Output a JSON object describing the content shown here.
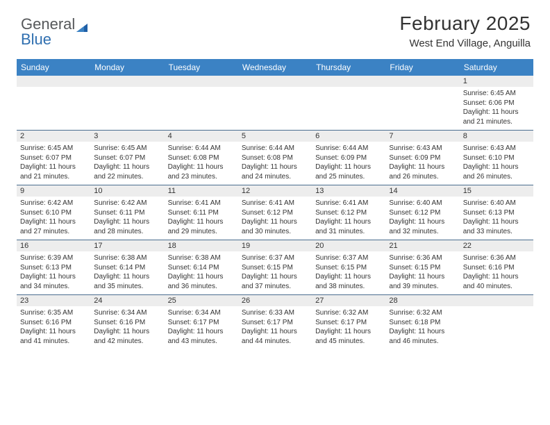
{
  "brand": {
    "part1": "General",
    "part2": "Blue"
  },
  "title": "February 2025",
  "location": "West End Village, Anguilla",
  "colors": {
    "header_bar": "#3b82c4",
    "week_border": "#4a6d8f",
    "daynum_bg": "#ededed",
    "text": "#333333",
    "logo_dark": "#56585a",
    "logo_blue": "#2f6fb0"
  },
  "daysOfWeek": [
    "Sunday",
    "Monday",
    "Tuesday",
    "Wednesday",
    "Thursday",
    "Friday",
    "Saturday"
  ],
  "weeks": [
    [
      {
        "n": "",
        "sr": "",
        "ss": "",
        "dl": ""
      },
      {
        "n": "",
        "sr": "",
        "ss": "",
        "dl": ""
      },
      {
        "n": "",
        "sr": "",
        "ss": "",
        "dl": ""
      },
      {
        "n": "",
        "sr": "",
        "ss": "",
        "dl": ""
      },
      {
        "n": "",
        "sr": "",
        "ss": "",
        "dl": ""
      },
      {
        "n": "",
        "sr": "",
        "ss": "",
        "dl": ""
      },
      {
        "n": "1",
        "sr": "Sunrise: 6:45 AM",
        "ss": "Sunset: 6:06 PM",
        "dl": "Daylight: 11 hours and 21 minutes."
      }
    ],
    [
      {
        "n": "2",
        "sr": "Sunrise: 6:45 AM",
        "ss": "Sunset: 6:07 PM",
        "dl": "Daylight: 11 hours and 21 minutes."
      },
      {
        "n": "3",
        "sr": "Sunrise: 6:45 AM",
        "ss": "Sunset: 6:07 PM",
        "dl": "Daylight: 11 hours and 22 minutes."
      },
      {
        "n": "4",
        "sr": "Sunrise: 6:44 AM",
        "ss": "Sunset: 6:08 PM",
        "dl": "Daylight: 11 hours and 23 minutes."
      },
      {
        "n": "5",
        "sr": "Sunrise: 6:44 AM",
        "ss": "Sunset: 6:08 PM",
        "dl": "Daylight: 11 hours and 24 minutes."
      },
      {
        "n": "6",
        "sr": "Sunrise: 6:44 AM",
        "ss": "Sunset: 6:09 PM",
        "dl": "Daylight: 11 hours and 25 minutes."
      },
      {
        "n": "7",
        "sr": "Sunrise: 6:43 AM",
        "ss": "Sunset: 6:09 PM",
        "dl": "Daylight: 11 hours and 26 minutes."
      },
      {
        "n": "8",
        "sr": "Sunrise: 6:43 AM",
        "ss": "Sunset: 6:10 PM",
        "dl": "Daylight: 11 hours and 26 minutes."
      }
    ],
    [
      {
        "n": "9",
        "sr": "Sunrise: 6:42 AM",
        "ss": "Sunset: 6:10 PM",
        "dl": "Daylight: 11 hours and 27 minutes."
      },
      {
        "n": "10",
        "sr": "Sunrise: 6:42 AM",
        "ss": "Sunset: 6:11 PM",
        "dl": "Daylight: 11 hours and 28 minutes."
      },
      {
        "n": "11",
        "sr": "Sunrise: 6:41 AM",
        "ss": "Sunset: 6:11 PM",
        "dl": "Daylight: 11 hours and 29 minutes."
      },
      {
        "n": "12",
        "sr": "Sunrise: 6:41 AM",
        "ss": "Sunset: 6:12 PM",
        "dl": "Daylight: 11 hours and 30 minutes."
      },
      {
        "n": "13",
        "sr": "Sunrise: 6:41 AM",
        "ss": "Sunset: 6:12 PM",
        "dl": "Daylight: 11 hours and 31 minutes."
      },
      {
        "n": "14",
        "sr": "Sunrise: 6:40 AM",
        "ss": "Sunset: 6:12 PM",
        "dl": "Daylight: 11 hours and 32 minutes."
      },
      {
        "n": "15",
        "sr": "Sunrise: 6:40 AM",
        "ss": "Sunset: 6:13 PM",
        "dl": "Daylight: 11 hours and 33 minutes."
      }
    ],
    [
      {
        "n": "16",
        "sr": "Sunrise: 6:39 AM",
        "ss": "Sunset: 6:13 PM",
        "dl": "Daylight: 11 hours and 34 minutes."
      },
      {
        "n": "17",
        "sr": "Sunrise: 6:38 AM",
        "ss": "Sunset: 6:14 PM",
        "dl": "Daylight: 11 hours and 35 minutes."
      },
      {
        "n": "18",
        "sr": "Sunrise: 6:38 AM",
        "ss": "Sunset: 6:14 PM",
        "dl": "Daylight: 11 hours and 36 minutes."
      },
      {
        "n": "19",
        "sr": "Sunrise: 6:37 AM",
        "ss": "Sunset: 6:15 PM",
        "dl": "Daylight: 11 hours and 37 minutes."
      },
      {
        "n": "20",
        "sr": "Sunrise: 6:37 AM",
        "ss": "Sunset: 6:15 PM",
        "dl": "Daylight: 11 hours and 38 minutes."
      },
      {
        "n": "21",
        "sr": "Sunrise: 6:36 AM",
        "ss": "Sunset: 6:15 PM",
        "dl": "Daylight: 11 hours and 39 minutes."
      },
      {
        "n": "22",
        "sr": "Sunrise: 6:36 AM",
        "ss": "Sunset: 6:16 PM",
        "dl": "Daylight: 11 hours and 40 minutes."
      }
    ],
    [
      {
        "n": "23",
        "sr": "Sunrise: 6:35 AM",
        "ss": "Sunset: 6:16 PM",
        "dl": "Daylight: 11 hours and 41 minutes."
      },
      {
        "n": "24",
        "sr": "Sunrise: 6:34 AM",
        "ss": "Sunset: 6:16 PM",
        "dl": "Daylight: 11 hours and 42 minutes."
      },
      {
        "n": "25",
        "sr": "Sunrise: 6:34 AM",
        "ss": "Sunset: 6:17 PM",
        "dl": "Daylight: 11 hours and 43 minutes."
      },
      {
        "n": "26",
        "sr": "Sunrise: 6:33 AM",
        "ss": "Sunset: 6:17 PM",
        "dl": "Daylight: 11 hours and 44 minutes."
      },
      {
        "n": "27",
        "sr": "Sunrise: 6:32 AM",
        "ss": "Sunset: 6:17 PM",
        "dl": "Daylight: 11 hours and 45 minutes."
      },
      {
        "n": "28",
        "sr": "Sunrise: 6:32 AM",
        "ss": "Sunset: 6:18 PM",
        "dl": "Daylight: 11 hours and 46 minutes."
      },
      {
        "n": "",
        "sr": "",
        "ss": "",
        "dl": ""
      }
    ]
  ]
}
